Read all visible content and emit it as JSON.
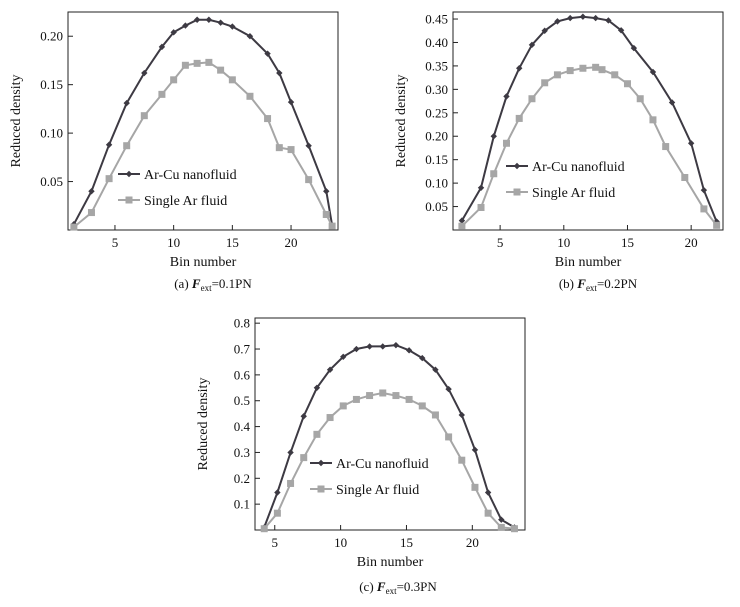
{
  "chart_data": [
    {
      "type": "line",
      "caption": {
        "prefix": "(a)",
        "symbol": "F",
        "subscript": "ext",
        "value": "=0.1PN"
      },
      "xlabel": "Bin number",
      "ylabel": "Reduced density",
      "xlim": [
        1,
        24
      ],
      "ylim": [
        0,
        0.225
      ],
      "xticks": [
        5,
        10,
        15,
        20
      ],
      "yticks": [
        0.05,
        0.1,
        0.15,
        0.2
      ],
      "ytick_labels": [
        "0.05",
        "0.10",
        "0.15",
        "0.20"
      ],
      "legend_position": "lower-middle",
      "series": [
        {
          "name": "Ar-Cu nanofluid",
          "color": "#3d3a43",
          "marker": "diamond",
          "x": [
            1.5,
            3,
            4.5,
            6,
            7.5,
            9,
            10,
            11,
            12,
            13,
            14,
            15,
            16.5,
            18,
            19,
            20,
            21.5,
            23,
            23.5
          ],
          "y": [
            0.006,
            0.04,
            0.088,
            0.131,
            0.162,
            0.189,
            0.204,
            0.211,
            0.217,
            0.217,
            0.214,
            0.21,
            0.2,
            0.182,
            0.162,
            0.132,
            0.087,
            0.04,
            0.005
          ]
        },
        {
          "name": "Single Ar fluid",
          "color": "#a6a6a6",
          "marker": "square",
          "x": [
            1.5,
            3,
            4.5,
            6,
            7.5,
            9,
            10,
            11,
            12,
            13,
            14,
            15,
            16.5,
            18,
            19,
            20,
            21.5,
            23,
            23.5
          ],
          "y": [
            0.003,
            0.018,
            0.053,
            0.087,
            0.118,
            0.14,
            0.155,
            0.17,
            0.172,
            0.173,
            0.165,
            0.155,
            0.138,
            0.115,
            0.085,
            0.083,
            0.052,
            0.016,
            0.004
          ]
        }
      ]
    },
    {
      "type": "line",
      "caption": {
        "prefix": "(b)",
        "symbol": "F",
        "subscript": "ext",
        "value": "=0.2PN"
      },
      "xlabel": "Bin number",
      "ylabel": "Reduced density",
      "xlim": [
        1.3,
        22.5
      ],
      "ylim": [
        0,
        0.465
      ],
      "xticks": [
        5,
        10,
        15,
        20
      ],
      "yticks": [
        0.05,
        0.1,
        0.15,
        0.2,
        0.25,
        0.3,
        0.35,
        0.4,
        0.45
      ],
      "ytick_labels": [
        "0.05",
        "0.10",
        "0.15",
        "0.20",
        "0.25",
        "0.30",
        "0.35",
        "0.40",
        "0.45"
      ],
      "legend_position": "lower-middle",
      "series": [
        {
          "name": "Ar-Cu nanofluid",
          "color": "#3d3a43",
          "marker": "diamond",
          "x": [
            2,
            3.5,
            4.5,
            5.5,
            6.5,
            7.5,
            8.5,
            9.5,
            10.5,
            11.5,
            12.5,
            13.5,
            14.5,
            15.5,
            17,
            18.5,
            20,
            21,
            22
          ],
          "y": [
            0.02,
            0.09,
            0.2,
            0.285,
            0.345,
            0.395,
            0.425,
            0.445,
            0.452,
            0.455,
            0.452,
            0.447,
            0.426,
            0.388,
            0.337,
            0.272,
            0.185,
            0.085,
            0.018
          ]
        },
        {
          "name": "Single Ar fluid",
          "color": "#a6a6a6",
          "marker": "square",
          "x": [
            2,
            3.5,
            4.5,
            5.5,
            6.5,
            7.5,
            8.5,
            9.5,
            10.5,
            11.5,
            12.5,
            13,
            14,
            15,
            16,
            17,
            18,
            19.5,
            21,
            22
          ],
          "y": [
            0.008,
            0.048,
            0.12,
            0.185,
            0.238,
            0.28,
            0.314,
            0.331,
            0.34,
            0.345,
            0.347,
            0.342,
            0.331,
            0.312,
            0.28,
            0.235,
            0.178,
            0.112,
            0.045,
            0.01
          ]
        }
      ]
    },
    {
      "type": "line",
      "caption": {
        "prefix": "(c)",
        "symbol": "F",
        "subscript": "ext",
        "value": "=0.3PN"
      },
      "xlabel": "Bin number",
      "ylabel": "Reduced density",
      "xlim": [
        3.5,
        24
      ],
      "ylim": [
        0,
        0.82
      ],
      "xticks": [
        5,
        10,
        15,
        20
      ],
      "yticks": [
        0.1,
        0.2,
        0.3,
        0.4,
        0.5,
        0.6,
        0.7,
        0.8
      ],
      "ytick_labels": [
        "0.1",
        "0.2",
        "0.3",
        "0.4",
        "0.5",
        "0.6",
        "0.7",
        "0.8"
      ],
      "legend_position": "lower-middle",
      "series": [
        {
          "name": "Ar-Cu nanofluid",
          "color": "#3d3a43",
          "marker": "diamond",
          "x": [
            4.2,
            5.2,
            6.2,
            7.2,
            8.2,
            9.2,
            10.2,
            11.2,
            12.2,
            13.2,
            14.2,
            15.2,
            16.2,
            17.2,
            18.2,
            19.2,
            20.2,
            21.2,
            22.2,
            23.2
          ],
          "y": [
            0.01,
            0.145,
            0.3,
            0.44,
            0.55,
            0.62,
            0.67,
            0.7,
            0.71,
            0.71,
            0.715,
            0.695,
            0.665,
            0.62,
            0.545,
            0.445,
            0.31,
            0.145,
            0.04,
            0.01
          ]
        },
        {
          "name": "Single Ar fluid",
          "color": "#a6a6a6",
          "marker": "square",
          "x": [
            4.2,
            5.2,
            6.2,
            7.2,
            8.2,
            9.2,
            10.2,
            11.2,
            12.2,
            13.2,
            14.2,
            15.2,
            16.2,
            17.2,
            18.2,
            19.2,
            20.2,
            21.2,
            22.2,
            23.2
          ],
          "y": [
            0.005,
            0.065,
            0.18,
            0.28,
            0.37,
            0.435,
            0.48,
            0.505,
            0.52,
            0.53,
            0.52,
            0.505,
            0.48,
            0.445,
            0.36,
            0.27,
            0.165,
            0.065,
            0.01,
            0.005
          ]
        }
      ]
    }
  ]
}
